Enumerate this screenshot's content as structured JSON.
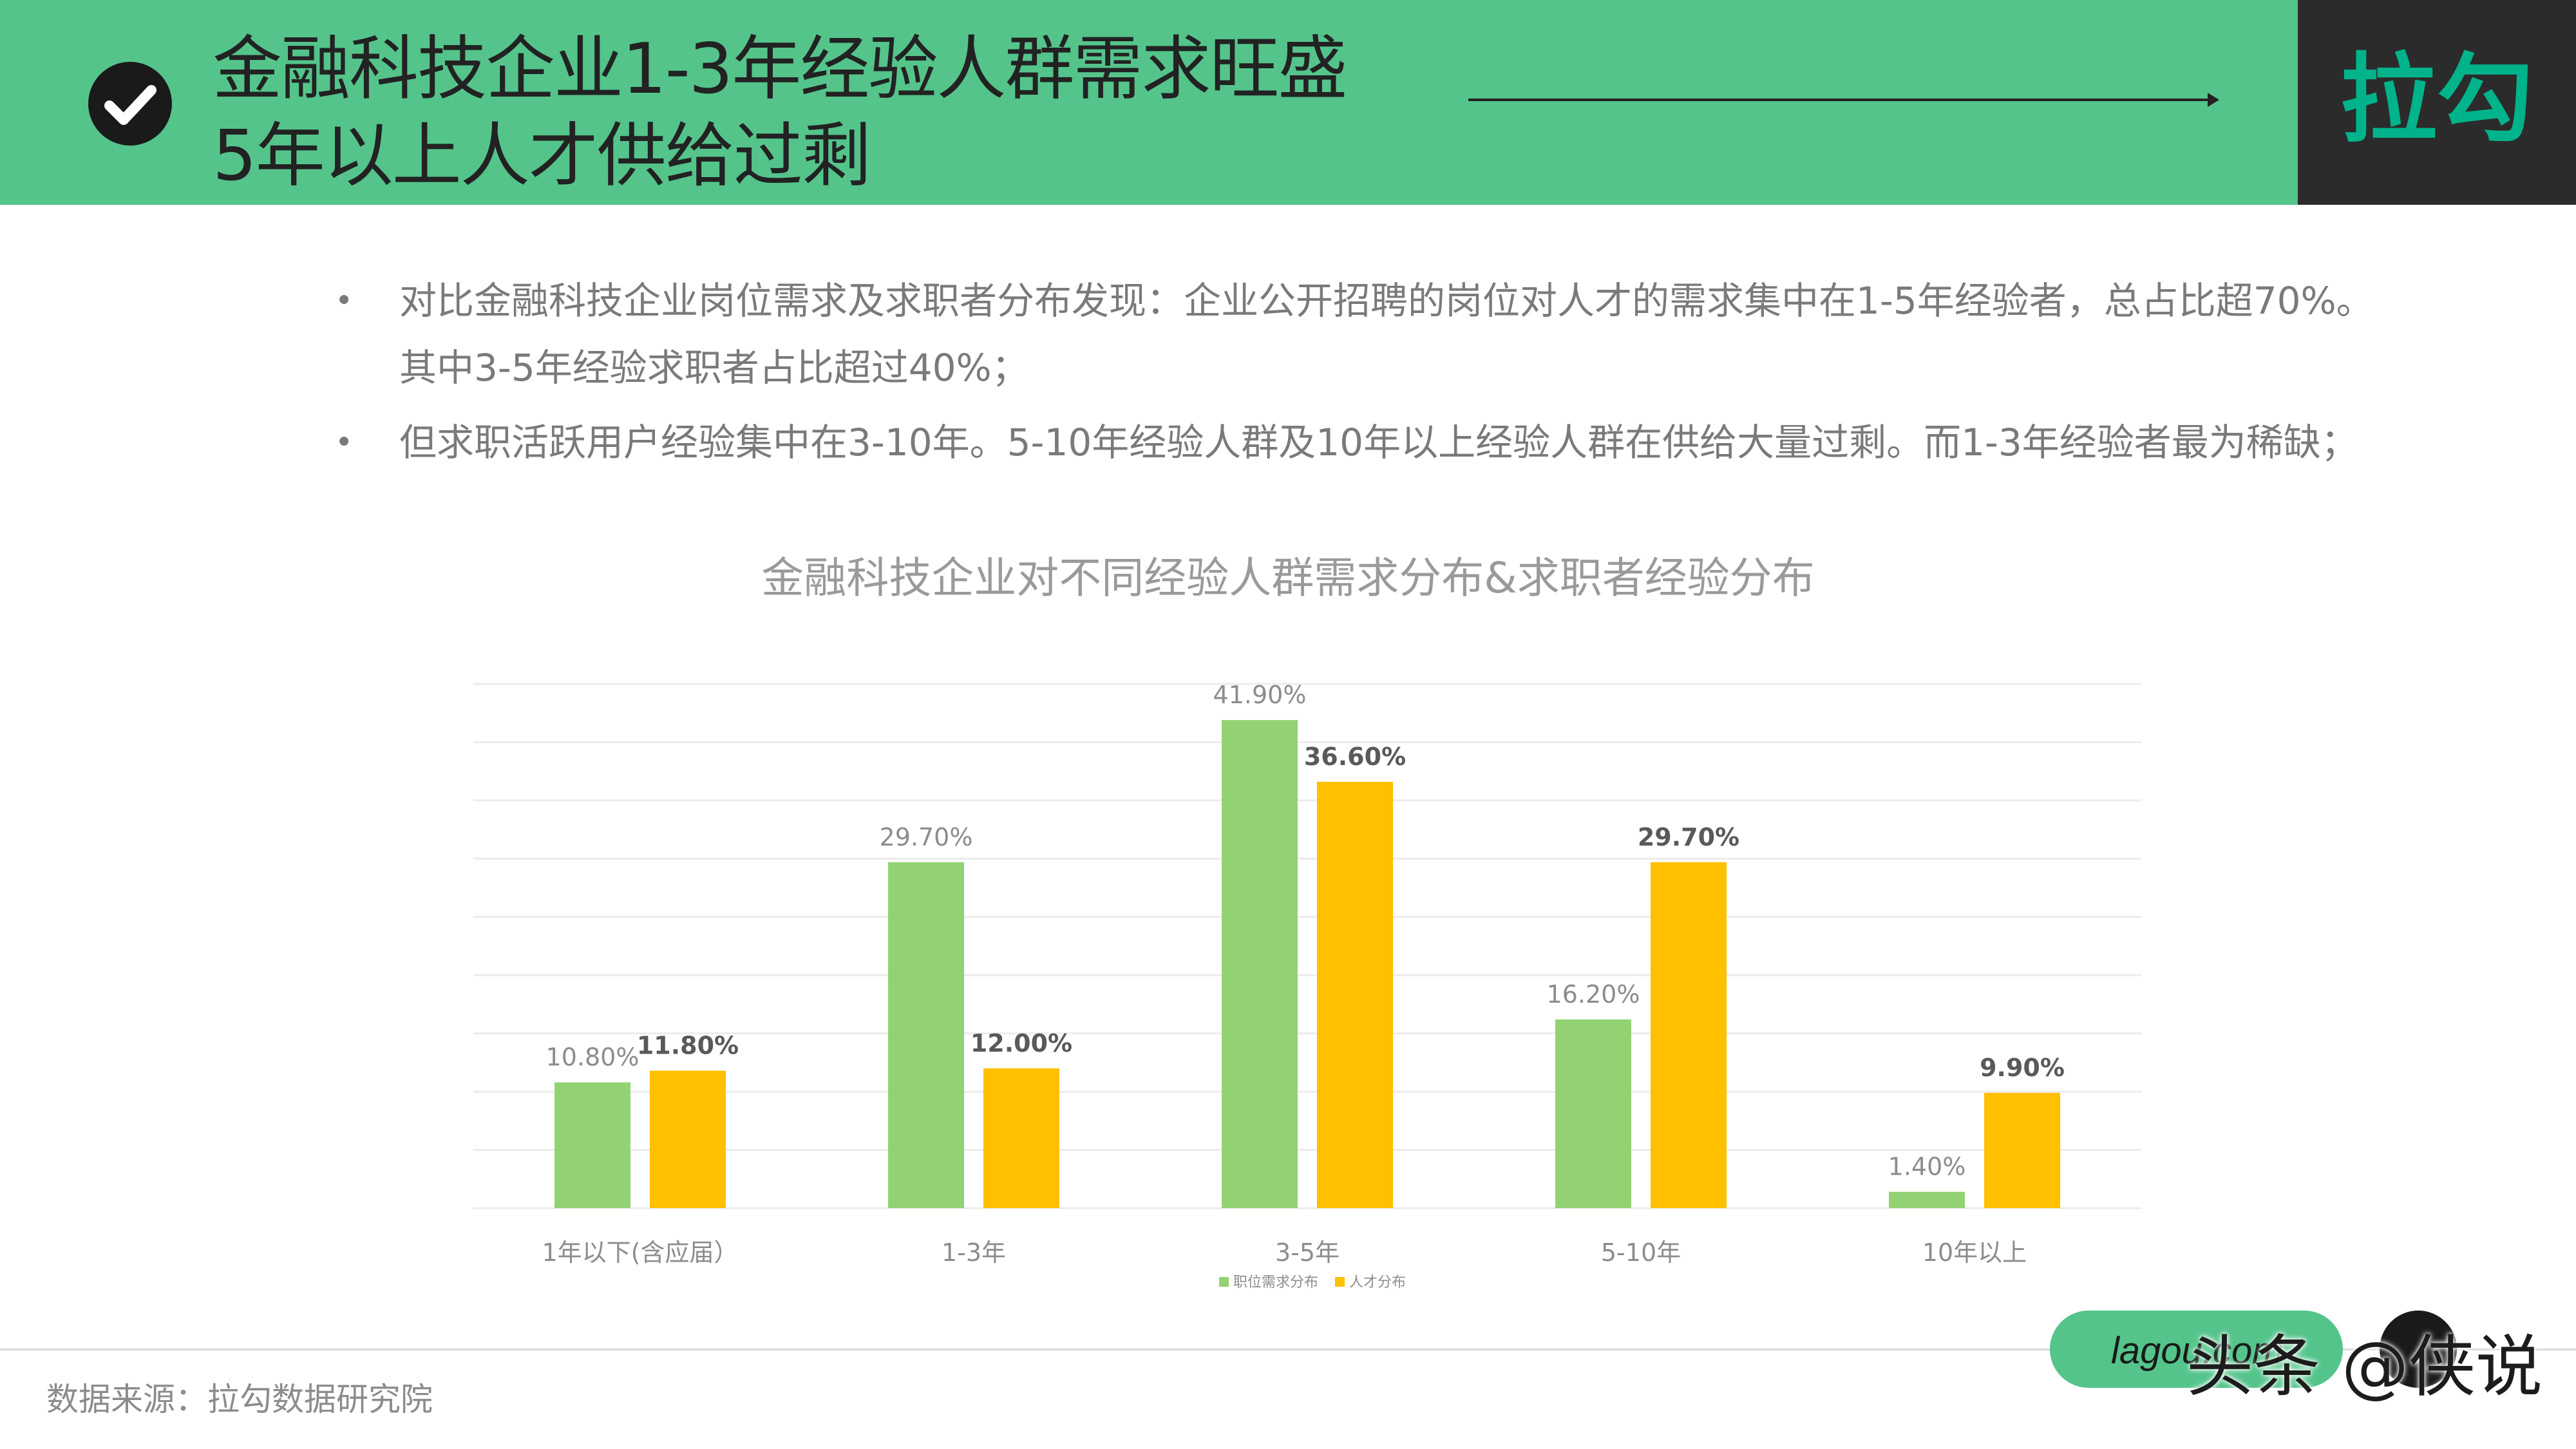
{
  "header": {
    "title_line1": "金融科技企业1-3年经验人群需求旺盛",
    "title_line2": "5年以上人才供给过剩",
    "brand": "拉勾",
    "colors": {
      "header_bg": "#54c48b",
      "brand_box_bg": "#2b2b2b",
      "brand_text": "#00b38a"
    },
    "icon": "check-circle-icon"
  },
  "bullets": [
    {
      "text": "对比金融科技企业岗位需求及求职者分布发现：企业公开招聘的岗位对人才的需求集中在1-5年经验者，总占比超70%。其中3-5年经验求职者占比超过40%；"
    },
    {
      "text": "但求职活跃用户经验集中在3-10年。5-10年经验人群及10年以上经验人群在供给大量过剩。而1-3年经验者最为稀缺；"
    }
  ],
  "chart_data": {
    "type": "bar",
    "title": "金融科技企业对不同经验人群需求分布&求职者经验分布",
    "categories": [
      "1年以下(含应届）",
      "1-3年",
      "3-5年",
      "5-10年",
      "10年以上"
    ],
    "series": [
      {
        "name": "职位需求分布",
        "values": [
          10.8,
          29.7,
          41.9,
          16.2,
          1.4
        ],
        "labels": [
          "10.80%",
          "29.70%",
          "41.90%",
          "16.20%",
          "1.40%"
        ],
        "color": "#92d273"
      },
      {
        "name": "人才分布",
        "values": [
          11.8,
          12.0,
          36.6,
          29.7,
          9.9
        ],
        "labels": [
          "11.80%",
          "12.00%",
          "36.60%",
          "29.70%",
          "9.90%"
        ],
        "color": "#ffc000"
      }
    ],
    "ylim": [
      0,
      45
    ],
    "grid": true,
    "legend_position": "bottom"
  },
  "footer": {
    "source": "数据来源：拉勾数据研究院",
    "pill_text": "lagou.com",
    "watermark": "头条 @侠说"
  }
}
